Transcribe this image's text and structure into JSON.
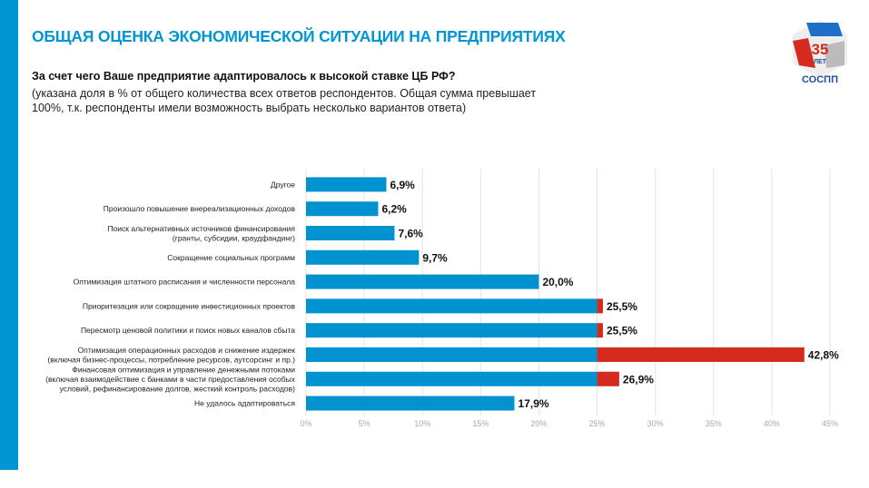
{
  "header": {
    "title": "ОБЩАЯ ОЦЕНКА ЭКОНОМИЧЕСКОЙ СИТУАЦИИ НА ПРЕДПРИЯТИЯХ",
    "question": "За счет чего Ваше предприятие адаптировалось к высокой ставке ЦБ РФ?",
    "note": "(указана доля в % от общего количества всех ответов респондентов. Общая сумма превышает 100%, т.к. респонденты имели возможность выбрать несколько вариантов ответа)"
  },
  "logo": {
    "number": "35",
    "sub": "ЛЕТ",
    "name": "СОСПП"
  },
  "colors": {
    "accent": "#0096d3",
    "bar": "#0093d0",
    "highlight": "#d52b1e"
  },
  "chart_data": {
    "type": "bar",
    "orientation": "horizontal",
    "categories": [
      [
        "Другое"
      ],
      [
        "Произошло повышение внереализационных доходов"
      ],
      [
        "Поиск альтернативных источников финансирования",
        "(гранты, субсидии, краудфандинг)"
      ],
      [
        "Сокращение социальных программ"
      ],
      [
        "Оптимизация штатного расписания и численности персонала"
      ],
      [
        "Приоритезация или сокращение инвестиционных проектов"
      ],
      [
        "Пересмотр ценовой политики и поиск новых каналов сбыта"
      ],
      [
        "Оптимизация операционных расходов и снижение издержек",
        "(включая бизнес-процессы, потребление ресурсов, аутсорсинг и пр.)"
      ],
      [
        "Финансовая оптимизация и управление денежными потоками",
        "(включая взаимодействие с банками в части предоставления особых",
        "условий, рефинансирование долгов, жесткий контроль расходов)"
      ],
      [
        "Не удалось адаптироваться"
      ]
    ],
    "values": [
      6.9,
      6.2,
      7.6,
      9.7,
      20.0,
      25.5,
      25.5,
      42.8,
      26.9,
      17.9
    ],
    "value_labels": [
      "6,9%",
      "6,2%",
      "7,6%",
      "9,7%",
      "20,0%",
      "25,5%",
      "25,5%",
      "42,8%",
      "26,9%",
      "17,9%"
    ],
    "highlight_above": 25,
    "xlim": [
      0,
      45
    ],
    "xticks": [
      "0%",
      "5%",
      "10%",
      "15%",
      "20%",
      "25%",
      "30%",
      "35%",
      "40%",
      "45%"
    ],
    "grid": true
  }
}
